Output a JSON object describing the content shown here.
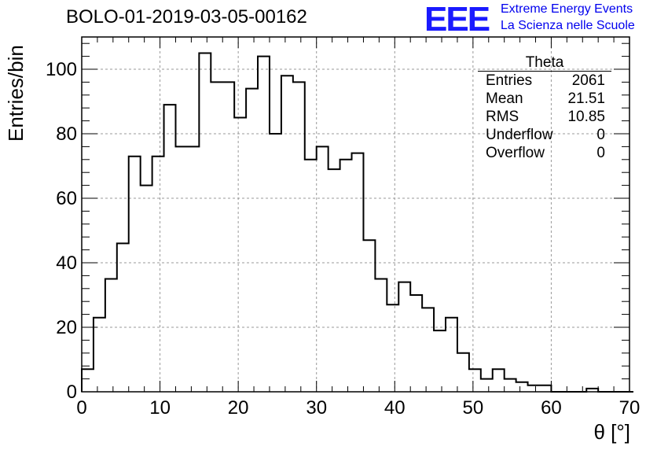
{
  "title": "BOLO-01-2019-03-05-00162",
  "logo": {
    "text": "EEE",
    "line1": "Extreme Energy Events",
    "line2": "La Scienza nelle Scuole",
    "color": "#1a1aff"
  },
  "stats": {
    "name": "Theta",
    "rows": [
      {
        "label": "Entries",
        "value": "2061"
      },
      {
        "label": "Mean",
        "value": "21.51"
      },
      {
        "label": "RMS",
        "value": "10.85"
      },
      {
        "label": "Underflow",
        "value": "0"
      },
      {
        "label": "Overflow",
        "value": "0"
      }
    ]
  },
  "chart_data": {
    "type": "bar",
    "histogram": true,
    "xlabel": "θ [°]",
    "ylabel": "Entries/bin",
    "xlim": [
      0,
      70
    ],
    "ylim": [
      0,
      110
    ],
    "bin_width": 1.5,
    "x_ticks": [
      0,
      10,
      20,
      30,
      40,
      50,
      60,
      70
    ],
    "y_ticks": [
      0,
      20,
      40,
      60,
      80,
      100
    ],
    "grid": true,
    "legend": "top-right",
    "values": [
      7,
      23,
      35,
      46,
      73,
      64,
      73,
      89,
      76,
      76,
      105,
      96,
      96,
      85,
      94,
      104,
      80,
      98,
      96,
      72,
      76,
      69,
      72,
      74,
      47,
      35,
      27,
      34,
      30,
      26,
      19,
      23,
      12,
      7,
      4,
      7,
      4,
      3,
      2,
      2,
      0,
      0,
      0,
      1,
      0,
      0,
      0
    ]
  }
}
